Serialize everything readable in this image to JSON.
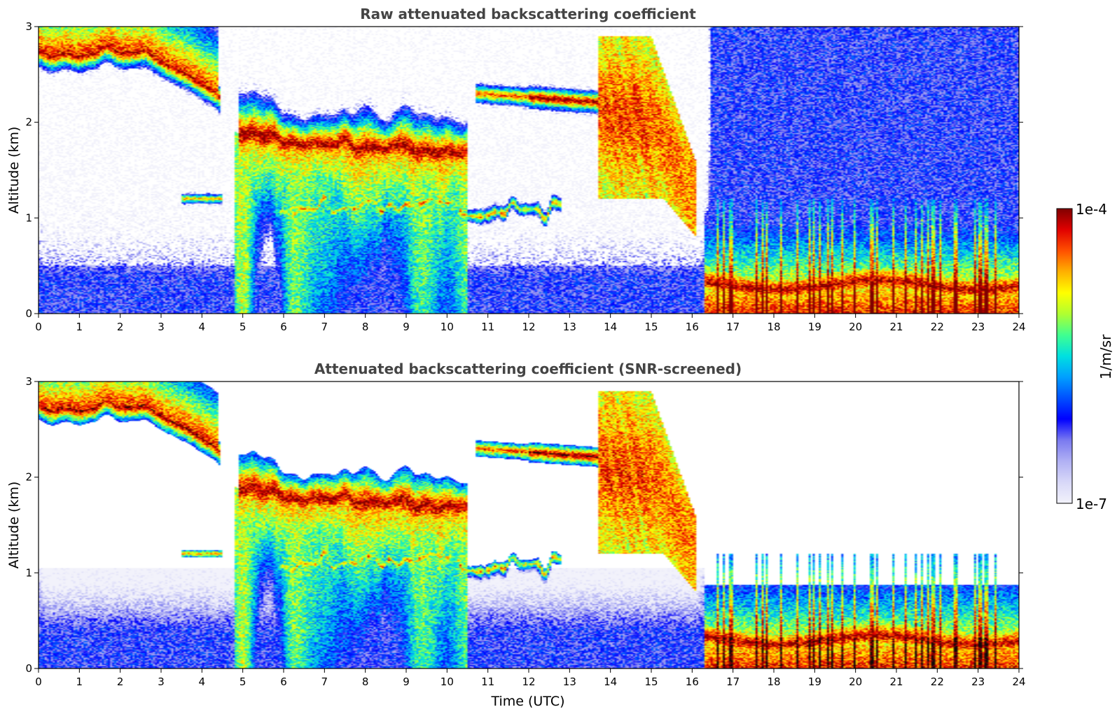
{
  "chart_data": {
    "type": "heatmap",
    "panels": [
      {
        "title": "Raw attenuated backscattering coefficient",
        "xlabel": "",
        "ylabel": "Altitude (km)",
        "xlim": [
          0,
          24
        ],
        "ylim": [
          0,
          3
        ],
        "xticks": [
          "0",
          "1",
          "2",
          "3",
          "4",
          "5",
          "6",
          "7",
          "8",
          "9",
          "10",
          "11",
          "12",
          "13",
          "14",
          "15",
          "16",
          "17",
          "18",
          "19",
          "20",
          "21",
          "22",
          "23",
          "24"
        ],
        "yticks": [
          "0",
          "1",
          "2",
          "3"
        ],
        "screened": false
      },
      {
        "title": "Attenuated backscattering coefficient (SNR-screened)",
        "xlabel": "Time (UTC)",
        "ylabel": "Altitude (km)",
        "xlim": [
          0,
          24
        ],
        "ylim": [
          0,
          3
        ],
        "xticks": [
          "0",
          "1",
          "2",
          "3",
          "4",
          "5",
          "6",
          "7",
          "8",
          "9",
          "10",
          "11",
          "12",
          "13",
          "14",
          "15",
          "16",
          "17",
          "18",
          "19",
          "20",
          "21",
          "22",
          "23",
          "24"
        ],
        "yticks": [
          "0",
          "1",
          "2",
          "3"
        ],
        "screened": true
      }
    ],
    "colorbar": {
      "label": "1/m/sr",
      "min_label": "1e-7",
      "max_label": "1e-4",
      "min": 1e-07,
      "max": 0.0001,
      "scale": "log",
      "colormap": [
        "#f2f2fb",
        "#d8d8f8",
        "#b0b0f4",
        "#7a7af0",
        "#0000ff",
        "#0050ff",
        "#00a0ff",
        "#00e0e0",
        "#40ff90",
        "#b0ff30",
        "#ffff00",
        "#ffb000",
        "#ff5000",
        "#e00000",
        "#800000"
      ]
    },
    "layers": [
      {
        "name": "surface aerosol layer",
        "t": [
          0,
          16.3
        ],
        "base_km": 0,
        "top_km": 0.9,
        "log10_beta": -6.2
      },
      {
        "name": "high cloud",
        "t": [
          0,
          4.4
        ],
        "base_km": 2.55,
        "top_km": 3.0,
        "log10_beta": -4.0
      },
      {
        "name": "mid-level cloud",
        "t": [
          5.0,
          10.4
        ],
        "base_km": 1.5,
        "top_km": 2.0,
        "log10_beta": -4.1
      },
      {
        "name": "cloud near 2.3 km",
        "t": [
          10.8,
          13.7
        ],
        "base_km": 2.1,
        "top_km": 2.45,
        "log10_beta": -4.0
      },
      {
        "name": "cloud near 1.1 km",
        "t": [
          5.9,
          12.8
        ],
        "base_km": 0.95,
        "top_km": 1.3,
        "log10_beta": -4.2
      },
      {
        "name": "deep cloud",
        "t": [
          13.7,
          16.0
        ],
        "base_km": 1.0,
        "top_km": 2.9,
        "log10_beta": -4.6
      },
      {
        "name": "boundary layer after 16.5 UTC",
        "t": [
          16.5,
          24
        ],
        "base_km": 0,
        "top_km": 0.6,
        "log10_beta": -4.4
      }
    ]
  }
}
